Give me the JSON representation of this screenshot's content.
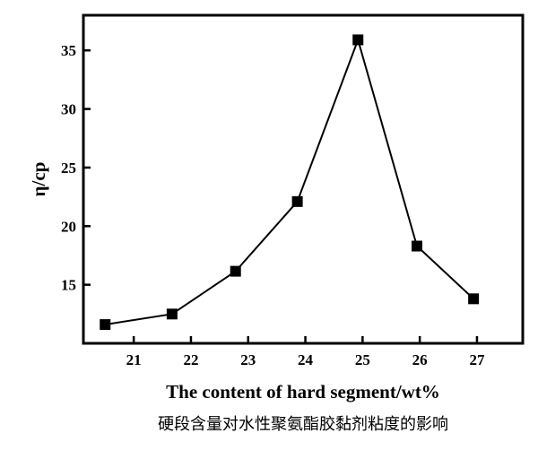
{
  "chart_data": {
    "type": "line",
    "title": "",
    "xlabel": "The content of hard segment/wt%",
    "ylabel": "η/cp",
    "caption": "硬段含量对水性聚氨酯胶黏剂粘度的影响",
    "xlim": [
      20.12,
      27.8
    ],
    "ylim": [
      10,
      38
    ],
    "xticks": [
      21,
      22,
      23,
      24,
      25,
      26,
      27
    ],
    "yticks": [
      15,
      20,
      25,
      30,
      35
    ],
    "grid": false,
    "marker": "square",
    "color": "#000000",
    "series": [
      {
        "x": [
          20.5,
          21.67,
          22.78,
          23.86,
          24.92,
          25.95,
          26.94
        ],
        "y": [
          11.6,
          12.5,
          16.15,
          22.1,
          35.9,
          18.3,
          13.8
        ]
      }
    ]
  }
}
